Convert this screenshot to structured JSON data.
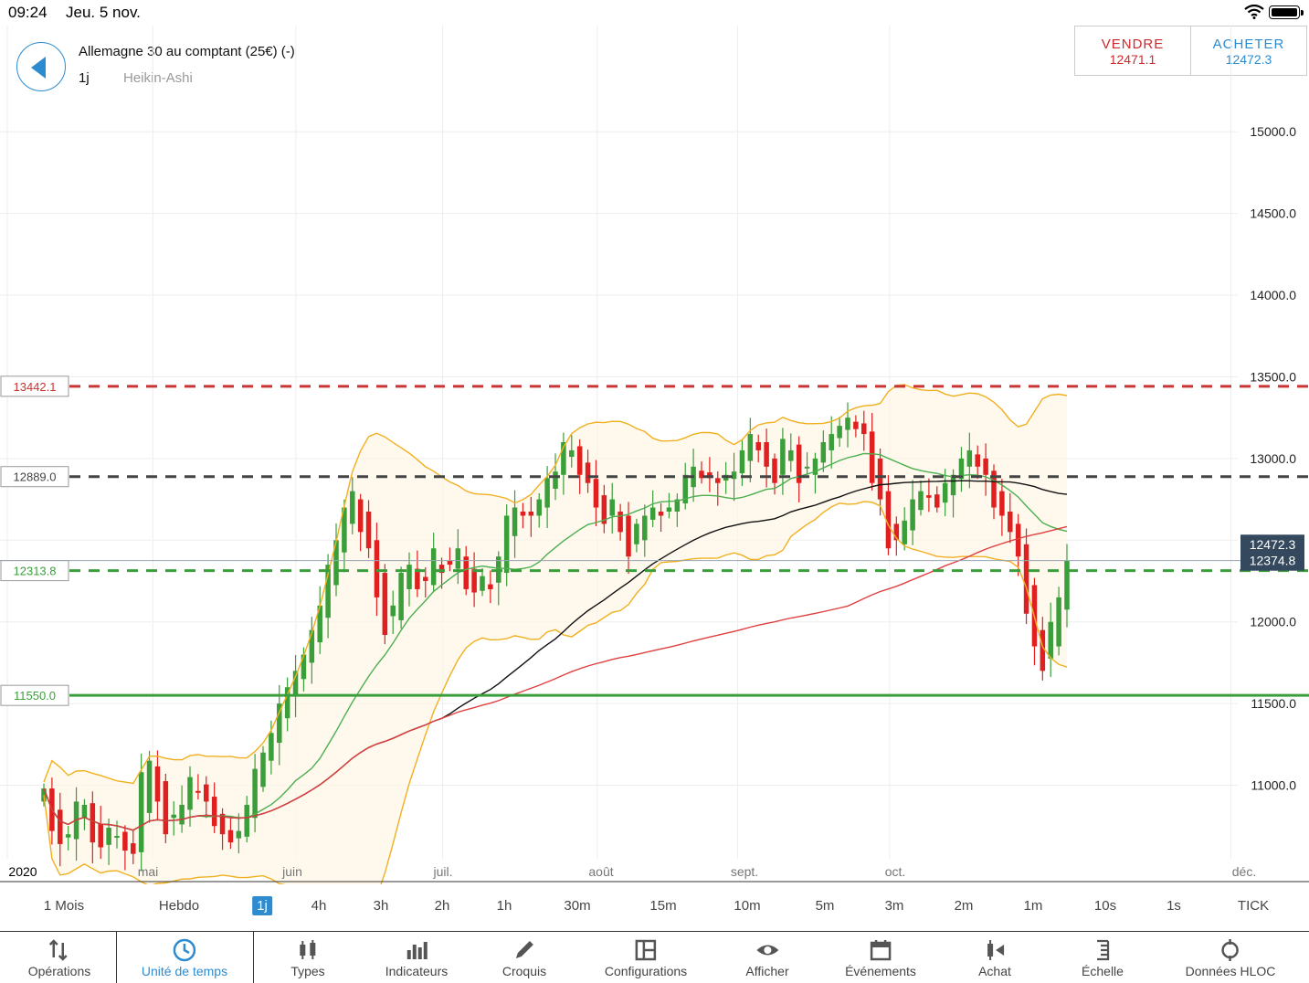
{
  "status": {
    "time": "09:24",
    "date": "Jeu. 5 nov."
  },
  "header": {
    "instrument": "Allemagne 30 au comptant (25€) (-)",
    "timeframe": "1j",
    "chart_type": "Heikin-Ashi"
  },
  "trade": {
    "sell_label": "VENDRE",
    "sell_price": "12471.1",
    "buy_label": "ACHETER",
    "buy_price": "12472.3"
  },
  "colors": {
    "up": "#3a9e3a",
    "down": "#e02020",
    "accent": "#2d8bd0",
    "bollinger": "#f0b020",
    "ma_green": "#4caf50",
    "ma_red": "#e04040",
    "ma_black": "#111111"
  },
  "chart_data": {
    "type": "candlestick",
    "y_axis": {
      "ticks": [
        "15000.0",
        "14500.0",
        "14000.0",
        "13500.0",
        "13000.0",
        "12500.0",
        "12000.0",
        "11500.0",
        "11000.0"
      ],
      "ylim": [
        10550,
        15650
      ]
    },
    "x_axis": {
      "labels": [
        "2020",
        "mai",
        "juin",
        "juil.",
        "août",
        "sept.",
        "oct.",
        "déc."
      ]
    },
    "price_labels": {
      "current": "12472.3",
      "last_close": "12374.8"
    },
    "levels": [
      {
        "label": "13442.1",
        "value": 13442.1,
        "color": "#cc3333",
        "style": "dashed"
      },
      {
        "label": "12889.0",
        "value": 12889.0,
        "color": "#444444",
        "style": "dashed"
      },
      {
        "label": "12313.8",
        "value": 12313.8,
        "color": "#3a9e3a",
        "style": "dashed"
      },
      {
        "label": "11550.0",
        "value": 11550.0,
        "color": "#3a9e3a",
        "style": "solid"
      }
    ],
    "candles_close": [
      10980,
      10720,
      10640,
      10700,
      10900,
      10880,
      10650,
      10620,
      10740,
      10690,
      10600,
      10580,
      11080,
      11150,
      10900,
      10700,
      10820,
      10880,
      11050,
      10960,
      10900,
      10750,
      10700,
      10650,
      10720,
      10880,
      11100,
      11200,
      11320,
      11500,
      11600,
      11700,
      11800,
      11950,
      12100,
      12350,
      12500,
      12700,
      12800,
      12550,
      12450,
      12150,
      11920,
      12100,
      12300,
      12350,
      12200,
      12250,
      12450,
      12300,
      12350,
      12450,
      12200,
      12180,
      12280,
      12200,
      12400,
      12650,
      12700,
      12650,
      12650,
      12750,
      12880,
      12920,
      13100,
      13050,
      12900,
      12850,
      12700,
      12600,
      12750,
      12550,
      12400,
      12600,
      12650,
      12700,
      12650,
      12700,
      12750,
      12900,
      12950,
      12880,
      12880,
      12850,
      12900,
      12920,
      13050,
      13150,
      13050,
      12950,
      12850,
      13120,
      13050,
      12850,
      12950,
      13000,
      13100,
      13150,
      13200,
      13250,
      13180,
      13150,
      12850,
      12750,
      12450,
      12500,
      12620,
      12750,
      12800,
      12760,
      12700,
      12850,
      12900,
      13000,
      13050,
      12950,
      12900,
      12700,
      12650,
      12550,
      12400,
      12050,
      11850,
      11700,
      12000,
      12150,
      12374.8
    ]
  },
  "timeframes": [
    "1 Mois",
    "Hebdo",
    "1j",
    "4h",
    "3h",
    "2h",
    "1h",
    "30m",
    "15m",
    "10m",
    "5m",
    "3m",
    "2m",
    "1m",
    "10s",
    "1s",
    "TICK"
  ],
  "timeframe_active": "1j",
  "toolbar": [
    {
      "label": "Opérations",
      "icon": "arrows-updown-icon"
    },
    {
      "label": "Unité de temps",
      "icon": "clock-icon"
    },
    {
      "label": "Types",
      "icon": "candles-icon"
    },
    {
      "label": "Indicateurs",
      "icon": "bar-chart-icon"
    },
    {
      "label": "Croquis",
      "icon": "pencil-icon"
    },
    {
      "label": "Configurations",
      "icon": "layout-icon"
    },
    {
      "label": "Afficher",
      "icon": "eye-icon"
    },
    {
      "label": "Événements",
      "icon": "calendar-icon"
    },
    {
      "label": "Achat",
      "icon": "buy-candle-icon"
    },
    {
      "label": "Échelle",
      "icon": "scale-icon"
    },
    {
      "label": "Données HLOC",
      "icon": "crosshair-icon"
    }
  ]
}
